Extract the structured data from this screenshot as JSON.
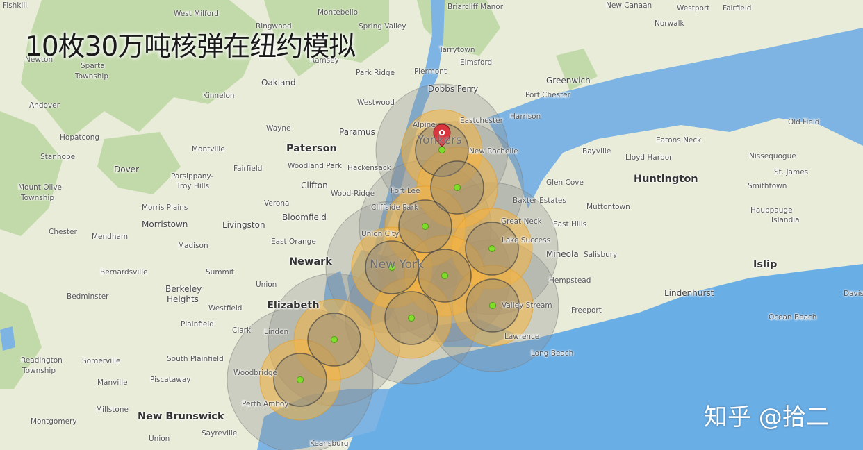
{
  "title": "10枚30万吨核弹在纽约模拟",
  "watermark": "知乎 @拾二",
  "colors": {
    "land": "#e8ecd8",
    "forest": "#b5d39a",
    "water": "#7db4e3",
    "ocean": "#6aaee6",
    "fireball_fill": "#f5b540",
    "blast_fill": "#8f8f8f",
    "ground_zero": "#7fdc2a",
    "marker": "#d9363e"
  },
  "marker": {
    "icon": "map-pin-icon"
  },
  "places": [
    {
      "name": "Fishkill",
      "size": "small"
    },
    {
      "name": "West Milford",
      "size": "small"
    },
    {
      "name": "Ringwood",
      "size": "small"
    },
    {
      "name": "Montebello",
      "size": "small"
    },
    {
      "name": "Briarcliff Manor",
      "size": "small"
    },
    {
      "name": "New Canaan",
      "size": "small"
    },
    {
      "name": "Westport",
      "size": "small"
    },
    {
      "name": "Fairfield",
      "size": "small"
    },
    {
      "name": "Norwalk",
      "size": "small"
    },
    {
      "name": "Spring Valley",
      "size": "small"
    },
    {
      "name": "Tarrytown",
      "size": "small"
    },
    {
      "name": "Newton",
      "size": "small"
    },
    {
      "name": "Sparta",
      "size": "small"
    },
    {
      "name": "Township",
      "size": "small"
    },
    {
      "name": "Ramsey",
      "size": "small"
    },
    {
      "name": "Elmsford",
      "size": "small"
    },
    {
      "name": "Park Ridge",
      "size": "small"
    },
    {
      "name": "Piermont",
      "size": "small"
    },
    {
      "name": "Oakland",
      "size": "mid"
    },
    {
      "name": "Dobbs Ferry",
      "size": "mid"
    },
    {
      "name": "Greenwich",
      "size": "mid"
    },
    {
      "name": "Port Chester",
      "size": "small"
    },
    {
      "name": "Andover",
      "size": "small"
    },
    {
      "name": "Kinnelon",
      "size": "small"
    },
    {
      "name": "Westwood",
      "size": "small"
    },
    {
      "name": "Harrison",
      "size": "small"
    },
    {
      "name": "Eastchester",
      "size": "small"
    },
    {
      "name": "Wayne",
      "size": "small"
    },
    {
      "name": "Paramus",
      "size": "mid"
    },
    {
      "name": "Alpine",
      "size": "small"
    },
    {
      "name": "Old Field",
      "size": "small"
    },
    {
      "name": "Eatons Neck",
      "size": "small"
    },
    {
      "name": "Hopatcong",
      "size": "small"
    },
    {
      "name": "Montville",
      "size": "small"
    },
    {
      "name": "Paterson",
      "size": "big"
    },
    {
      "name": "New Rochelle",
      "size": "small"
    },
    {
      "name": "Bayville",
      "size": "small"
    },
    {
      "name": "Lloyd Harbor",
      "size": "small"
    },
    {
      "name": "Nissequogue",
      "size": "small"
    },
    {
      "name": "Stanhope",
      "size": "small"
    },
    {
      "name": "Fairfield",
      "size": "small"
    },
    {
      "name": "Woodland Park",
      "size": "small"
    },
    {
      "name": "Hackensack",
      "size": "small"
    },
    {
      "name": "St. James",
      "size": "small"
    },
    {
      "name": "Dover",
      "size": "mid"
    },
    {
      "name": "Parsippany-",
      "size": "small"
    },
    {
      "name": "Troy Hills",
      "size": "small"
    },
    {
      "name": "Mount Olive",
      "size": "small"
    },
    {
      "name": "Township",
      "size": "small"
    },
    {
      "name": "Clifton",
      "size": "mid"
    },
    {
      "name": "Fort Lee",
      "size": "small"
    },
    {
      "name": "Glen Cove",
      "size": "small"
    },
    {
      "name": "Huntington",
      "size": "big"
    },
    {
      "name": "Smithtown",
      "size": "small"
    },
    {
      "name": "Wood-Ridge",
      "size": "small"
    },
    {
      "name": "Verona",
      "size": "small"
    },
    {
      "name": "Cliffside Park",
      "size": "small"
    },
    {
      "name": "Baxter Estates",
      "size": "small"
    },
    {
      "name": "Morris Plains",
      "size": "small"
    },
    {
      "name": "Muttontown",
      "size": "small"
    },
    {
      "name": "Hauppauge",
      "size": "small"
    },
    {
      "name": "Bloomfield",
      "size": "mid"
    },
    {
      "name": "Morristown",
      "size": "mid"
    },
    {
      "name": "Livingston",
      "size": "mid"
    },
    {
      "name": "Great Neck",
      "size": "small"
    },
    {
      "name": "East Hills",
      "size": "small"
    },
    {
      "name": "Islandia",
      "size": "small"
    },
    {
      "name": "Union City",
      "size": "small"
    },
    {
      "name": "Chester",
      "size": "small"
    },
    {
      "name": "Mendham",
      "size": "small"
    },
    {
      "name": "East Orange",
      "size": "small"
    },
    {
      "name": "Lake Success",
      "size": "small"
    },
    {
      "name": "Madison",
      "size": "small"
    },
    {
      "name": "Newark",
      "size": "big"
    },
    {
      "name": "New York",
      "size": "city"
    },
    {
      "name": "Mineola",
      "size": "mid"
    },
    {
      "name": "Salisbury",
      "size": "small"
    },
    {
      "name": "Islip",
      "size": "big"
    },
    {
      "name": "Bernardsville",
      "size": "small"
    },
    {
      "name": "Summit",
      "size": "small"
    },
    {
      "name": "Hempstead",
      "size": "small"
    },
    {
      "name": "Berkeley",
      "size": "mid"
    },
    {
      "name": "Heights",
      "size": "mid"
    },
    {
      "name": "Union",
      "size": "small"
    },
    {
      "name": "Lindenhurst",
      "size": "mid"
    },
    {
      "name": "Bedminster",
      "size": "small"
    },
    {
      "name": "Westfield",
      "size": "small"
    },
    {
      "name": "Elizabeth",
      "size": "big"
    },
    {
      "name": "Valley Stream",
      "size": "small"
    },
    {
      "name": "Freeport",
      "size": "small"
    },
    {
      "name": "Davis",
      "size": "small"
    },
    {
      "name": "Plainfield",
      "size": "small"
    },
    {
      "name": "Clark",
      "size": "small"
    },
    {
      "name": "Linden",
      "size": "small"
    },
    {
      "name": "Ocean Beach",
      "size": "small"
    },
    {
      "name": "Lawrence",
      "size": "small"
    },
    {
      "name": "Readington",
      "size": "small"
    },
    {
      "name": "Township",
      "size": "small"
    },
    {
      "name": "Somerville",
      "size": "small"
    },
    {
      "name": "South Plainfield",
      "size": "small"
    },
    {
      "name": "Long Beach",
      "size": "small"
    },
    {
      "name": "Woodbridge",
      "size": "small"
    },
    {
      "name": "Manville",
      "size": "small"
    },
    {
      "name": "Piscataway",
      "size": "small"
    },
    {
      "name": "Perth Amboy",
      "size": "small"
    },
    {
      "name": "Millstone",
      "size": "small"
    },
    {
      "name": "New Brunswick",
      "size": "big"
    },
    {
      "name": "Montgomery",
      "size": "small"
    },
    {
      "name": "Union",
      "size": "small"
    },
    {
      "name": "Sayreville",
      "size": "small"
    },
    {
      "name": "Keansburg",
      "size": "small"
    },
    {
      "name": "Yonkers",
      "size": "city"
    }
  ],
  "detonations": [
    {
      "id": "yonkers-strike"
    },
    {
      "id": "bronx-strike"
    },
    {
      "id": "manhattan-north-strike"
    },
    {
      "id": "manhattan-strike"
    },
    {
      "id": "queens-north-strike"
    },
    {
      "id": "queens-strike"
    },
    {
      "id": "brooklyn-strike"
    },
    {
      "id": "valley-stream-strike"
    },
    {
      "id": "linden-strike"
    },
    {
      "id": "perth-amboy-strike"
    }
  ]
}
